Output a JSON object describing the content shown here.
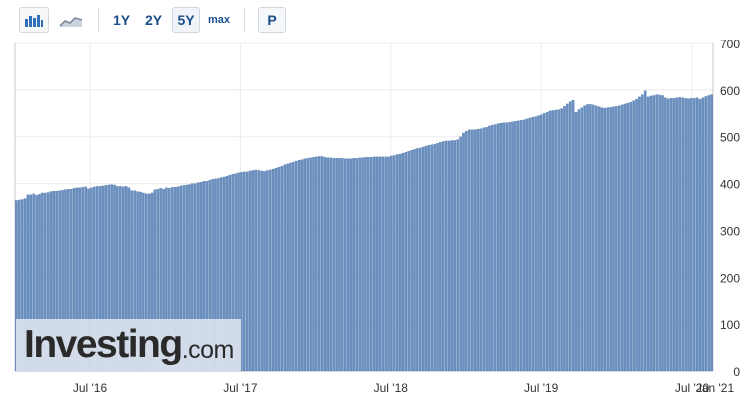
{
  "toolbar": {
    "icons": [
      {
        "name": "bar-chart-icon",
        "color": "#2f6fb5"
      },
      {
        "name": "area-chart-icon",
        "color": "#7d8a99"
      }
    ],
    "ranges": [
      "1Y",
      "2Y",
      "5Y",
      "max"
    ],
    "active_range": "5Y",
    "p_label": "P"
  },
  "watermark": {
    "word": "Investing",
    "suffix": ".com"
  },
  "colors": {
    "bar": "#6b8fbf",
    "bar_edge": "#4f79ad",
    "grid": "#ebebeb",
    "axis_text": "#333333"
  },
  "chart_data": {
    "type": "bar",
    "title": "",
    "xlabel": "",
    "ylabel": "",
    "ylim": [
      0,
      700
    ],
    "yticks": [
      0,
      100,
      200,
      300,
      400,
      500,
      600,
      700
    ],
    "xtick_labels": [
      "Jul '16",
      "Jul '17",
      "Jul '18",
      "Jul '19",
      "Jul '20",
      "Jan '21"
    ],
    "grid": true,
    "y_axis_position": "right",
    "frequency": "weekly",
    "start": "2016-01-01",
    "values": [
      364,
      365,
      366,
      368,
      376,
      376,
      378,
      375,
      377,
      380,
      380,
      381,
      383,
      384,
      384,
      385,
      386,
      387,
      388,
      388,
      390,
      391,
      391,
      392,
      393,
      389,
      391,
      393,
      394,
      394,
      395,
      396,
      397,
      398,
      397,
      394,
      394,
      393,
      394,
      391,
      385,
      385,
      383,
      382,
      380,
      378,
      378,
      380,
      387,
      388,
      390,
      388,
      391,
      390,
      392,
      392,
      393,
      395,
      396,
      397,
      398,
      400,
      400,
      402,
      403,
      405,
      405,
      407,
      409,
      410,
      411,
      413,
      414,
      416,
      418,
      420,
      421,
      423,
      424,
      425,
      425,
      427,
      428,
      429,
      428,
      427,
      426,
      428,
      429,
      431,
      433,
      435,
      437,
      440,
      442,
      444,
      446,
      448,
      450,
      451,
      453,
      454,
      455,
      456,
      457,
      458,
      458,
      456,
      455,
      455,
      454,
      454,
      454,
      454,
      453,
      453,
      453,
      454,
      454,
      455,
      455,
      456,
      456,
      456,
      457,
      457,
      457,
      457,
      457,
      457,
      459,
      460,
      462,
      463,
      465,
      467,
      469,
      471,
      473,
      475,
      476,
      478,
      480,
      482,
      483,
      484,
      486,
      488,
      490,
      491,
      491,
      492,
      492,
      494,
      500,
      508,
      512,
      515,
      515,
      515,
      516,
      517,
      519,
      520,
      523,
      525,
      526,
      528,
      529,
      530,
      530,
      531,
      532,
      533,
      534,
      535,
      536,
      538,
      540,
      542,
      543,
      545,
      547,
      550,
      552,
      555,
      556,
      557,
      558,
      560,
      565,
      570,
      575,
      578,
      552,
      558,
      562,
      566,
      569,
      569,
      568,
      566,
      564,
      562,
      561,
      562,
      563,
      564,
      565,
      566,
      568,
      570,
      572,
      574,
      577,
      580,
      585,
      590,
      598,
      585,
      587,
      588,
      590,
      589,
      588,
      583,
      581,
      582,
      582,
      583,
      584,
      583,
      582,
      581,
      582,
      582,
      583,
      580,
      583,
      586,
      588,
      590
    ]
  }
}
